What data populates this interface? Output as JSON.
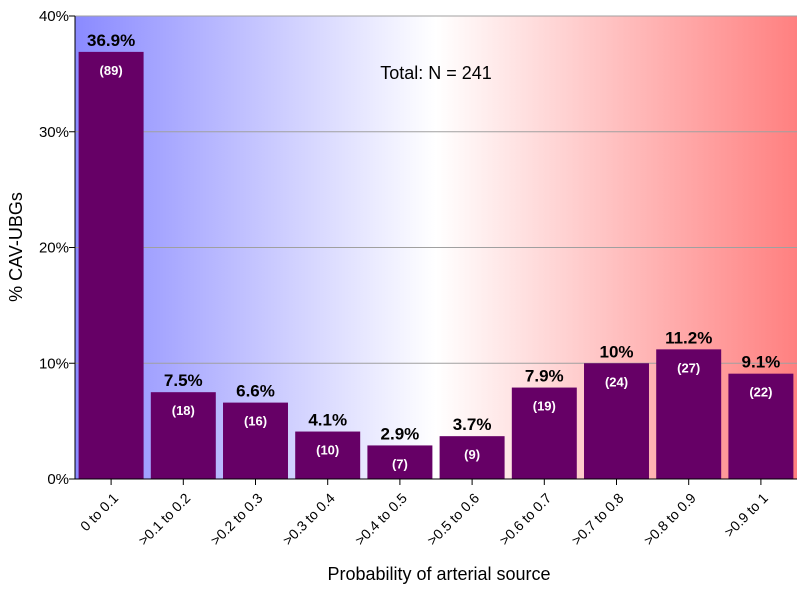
{
  "chart_data": {
    "type": "bar",
    "title": "",
    "annotation": "Total: N = 241",
    "xlabel": "Probability of arterial source",
    "ylabel": "% CAV-UBGs",
    "ylim": [
      0,
      40
    ],
    "yticks": [
      "0%",
      "10%",
      "20%",
      "30%",
      "40%"
    ],
    "grid": true,
    "categories": [
      "0 to 0.1",
      ">0.1 to 0.2",
      ">0.2 to 0.3",
      ">0.3 to 0.4",
      ">0.4 to 0.5",
      ">0.5 to 0.6",
      ">0.6 to 0.7",
      ">0.7 to 0.8",
      ">0.8 to 0.9",
      ">0.9 to 1"
    ],
    "values": [
      36.9,
      7.5,
      6.6,
      4.1,
      2.9,
      3.7,
      7.9,
      10,
      11.2,
      9.1
    ],
    "value_labels": [
      "36.9%",
      "7.5%",
      "6.6%",
      "4.1%",
      "2.9%",
      "3.7%",
      "7.9%",
      "10%",
      "11.2%",
      "9.1%"
    ],
    "count_labels": [
      "(89)",
      "(18)",
      "(16)",
      "(10)",
      "(7)",
      "(9)",
      "(19)",
      "(24)",
      "(27)",
      "(22)"
    ],
    "colors": {
      "bar": "#660066",
      "gradient_left": "#8a8aff",
      "gradient_mid": "#ffffff",
      "gradient_right": "#ff8080",
      "grid": "#a0a0a0"
    }
  }
}
